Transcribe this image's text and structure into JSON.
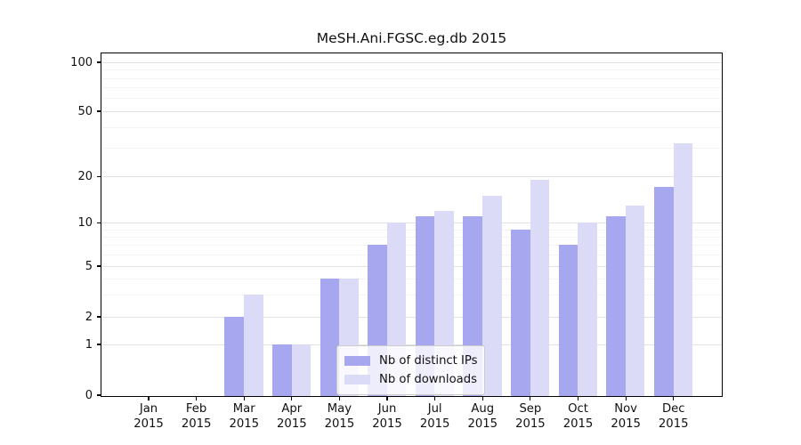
{
  "title": "MeSH.Ani.FGSC.eg.db 2015",
  "chart_data": {
    "type": "bar",
    "title": "MeSH.Ani.FGSC.eg.db 2015",
    "scale": "log-like (0,1,2,5,10,20,50,100)",
    "grid": true,
    "legend_position": "inside-bottom-center",
    "x_categories": [
      {
        "month": "Jan",
        "year": "2015"
      },
      {
        "month": "Feb",
        "year": "2015"
      },
      {
        "month": "Mar",
        "year": "2015"
      },
      {
        "month": "Apr",
        "year": "2015"
      },
      {
        "month": "May",
        "year": "2015"
      },
      {
        "month": "Jun",
        "year": "2015"
      },
      {
        "month": "Jul",
        "year": "2015"
      },
      {
        "month": "Aug",
        "year": "2015"
      },
      {
        "month": "Sep",
        "year": "2015"
      },
      {
        "month": "Oct",
        "year": "2015"
      },
      {
        "month": "Nov",
        "year": "2015"
      },
      {
        "month": "Dec",
        "year": "2015"
      }
    ],
    "y_tick_labels": [
      "0",
      "1",
      "2",
      "5",
      "10",
      "20",
      "50",
      "100"
    ],
    "y_minor_gridlines": [
      3,
      4,
      6,
      7,
      8,
      9,
      30,
      40,
      60,
      70,
      80,
      90
    ],
    "series": [
      {
        "name": "Nb of distinct IPs",
        "color": "#a7a7f0",
        "values": [
          0,
          0,
          2,
          1,
          4,
          7,
          11,
          11,
          9,
          7,
          11,
          17
        ]
      },
      {
        "name": "Nb of downloads",
        "color": "#dbdbf8",
        "values": [
          0,
          0,
          3,
          1,
          4,
          10,
          12,
          15,
          19,
          10,
          13,
          32
        ]
      }
    ]
  },
  "colors": {
    "background": "#ffffff",
    "axis": "#000000",
    "grid_major": "#e2e2e2",
    "grid_minor": "#f3f3f3",
    "text": "#111111",
    "bar_distinct_ips": "#a7a7f0",
    "bar_downloads": "#dbdbf8",
    "legend_border": "#cccccc"
  }
}
